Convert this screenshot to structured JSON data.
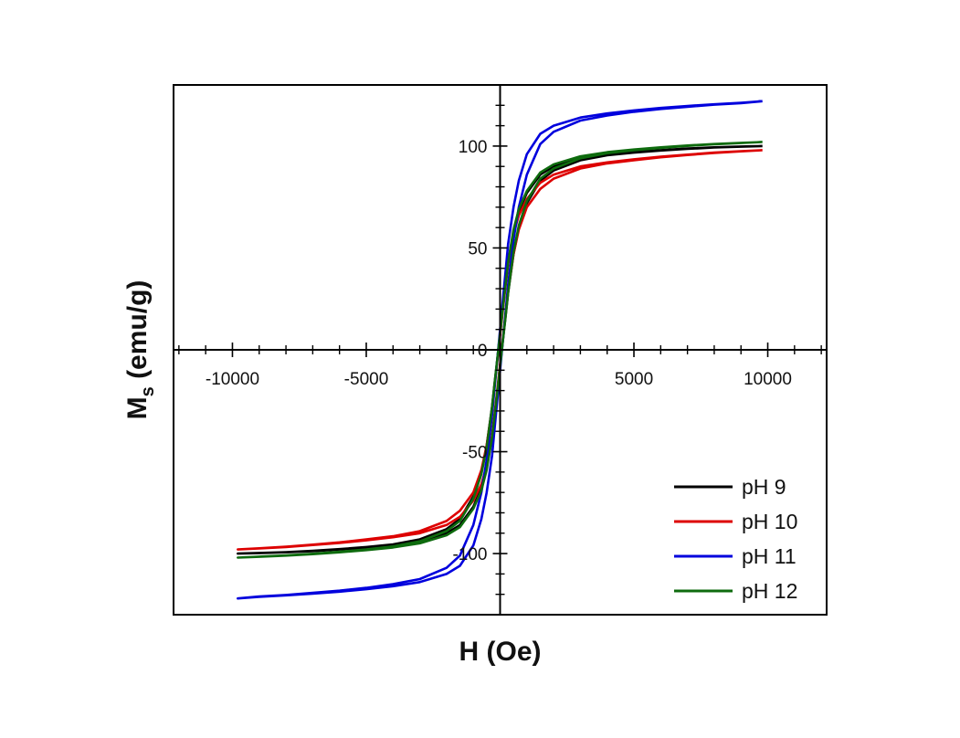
{
  "chart_data": {
    "type": "line",
    "title": "",
    "xlabel": "H (Oe)",
    "ylabel": "M",
    "ylabel_subscript": "s",
    "ylabel_units": " (emu/g)",
    "xlim": [
      -12200,
      12200
    ],
    "ylim": [
      -130,
      130
    ],
    "x_ticks": [
      -10000,
      -5000,
      0,
      5000,
      10000
    ],
    "x_tick_labels": [
      "-10000",
      "-5000",
      "",
      "5000",
      "10000"
    ],
    "y_ticks": [
      -100,
      -50,
      0,
      50,
      100
    ],
    "y_tick_labels": [
      "-100",
      "-50",
      "0",
      "50",
      "100"
    ],
    "grid": false,
    "legend_position": "bottom-right",
    "series": [
      {
        "name": "pH 9",
        "color": "#000000",
        "x": [
          0,
          100,
          200,
          300,
          500,
          700,
          1000,
          1500,
          2000,
          3000,
          4000,
          5000,
          6000,
          7000,
          8000,
          9000,
          9800
        ],
        "y_upper": [
          8,
          20,
          32,
          43,
          58,
          68,
          77,
          86,
          90,
          94,
          96,
          97,
          98,
          98.8,
          99.4,
          99.8,
          100
        ],
        "y_lower": [
          -8,
          4,
          16,
          28,
          47,
          60,
          72,
          83,
          88,
          93,
          95.5,
          96.8,
          97.8,
          98.6,
          99.3,
          99.7,
          100
        ]
      },
      {
        "name": "pH 10",
        "color": "#dd0000",
        "x": [
          0,
          100,
          200,
          300,
          500,
          700,
          1000,
          1500,
          2000,
          3000,
          4000,
          5000,
          6000,
          7000,
          8000,
          9000,
          9800
        ],
        "y_upper": [
          7,
          19,
          31,
          42,
          57,
          66,
          74,
          82,
          86,
          90,
          92,
          93.5,
          94.8,
          95.8,
          96.8,
          97.5,
          98
        ],
        "y_lower": [
          -7,
          5,
          17,
          29,
          47,
          59,
          70,
          79,
          84,
          89,
          91.5,
          93,
          94.5,
          95.6,
          96.6,
          97.4,
          98
        ]
      },
      {
        "name": "pH 11",
        "color": "#0000dd",
        "x": [
          0,
          100,
          200,
          300,
          500,
          700,
          1000,
          1500,
          2000,
          3000,
          4000,
          5000,
          6000,
          7000,
          8000,
          9000,
          9800
        ],
        "y_upper": [
          10,
          24,
          38,
          52,
          70,
          83,
          96,
          106,
          110,
          114,
          116,
          117.5,
          118.7,
          119.7,
          120.5,
          121.2,
          122
        ],
        "y_lower": [
          -10,
          4,
          18,
          32,
          54,
          70,
          86,
          101,
          107,
          112.5,
          115,
          116.8,
          118.2,
          119.3,
          120.3,
          121.1,
          122
        ]
      },
      {
        "name": "pH 12",
        "color": "#0e6b0e",
        "x": [
          0,
          100,
          200,
          300,
          500,
          700,
          1000,
          1500,
          2000,
          3000,
          4000,
          5000,
          6000,
          7000,
          8000,
          9000,
          9800
        ],
        "y_upper": [
          8,
          20,
          32,
          43,
          59,
          69,
          78,
          87,
          91,
          95,
          97,
          98.3,
          99.4,
          100.3,
          101,
          101.6,
          102
        ],
        "y_lower": [
          -8,
          4,
          16,
          28,
          48,
          61,
          73,
          84,
          89,
          94,
          96.5,
          98,
          99.1,
          100.1,
          100.9,
          101.5,
          102
        ]
      }
    ]
  }
}
